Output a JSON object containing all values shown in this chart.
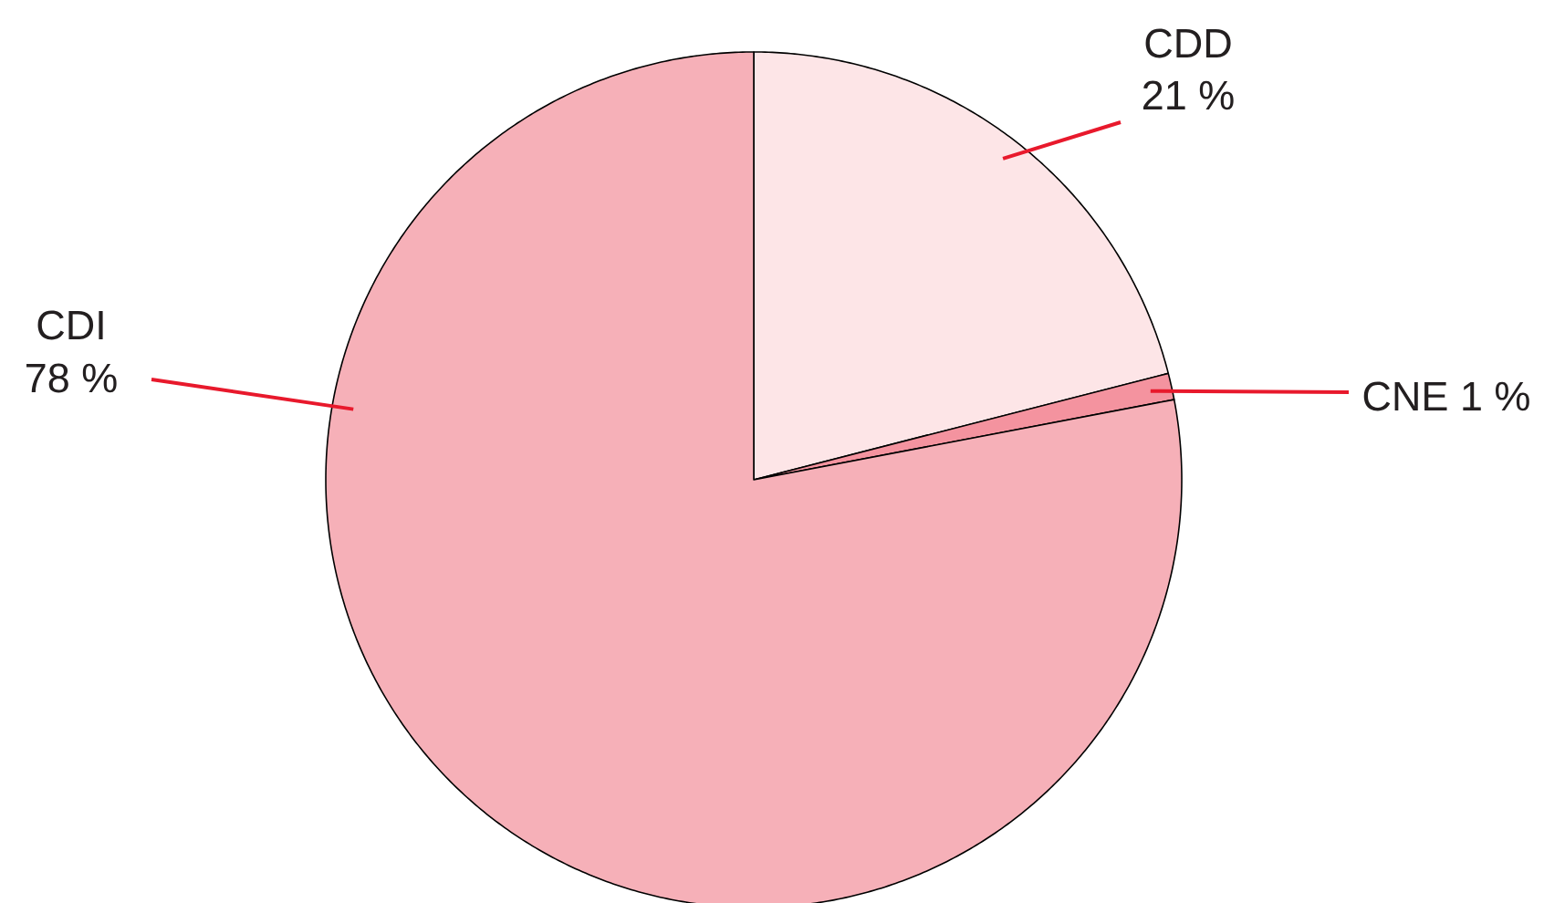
{
  "chart_data": {
    "type": "pie",
    "categories": [
      "CDD",
      "CNE",
      "CDI"
    ],
    "values": [
      21,
      1,
      78
    ],
    "colors": [
      "#fde5e7",
      "#f4939f",
      "#f6b0b8"
    ],
    "value_labels": [
      "21 %",
      "1 %",
      "78 %"
    ]
  }
}
